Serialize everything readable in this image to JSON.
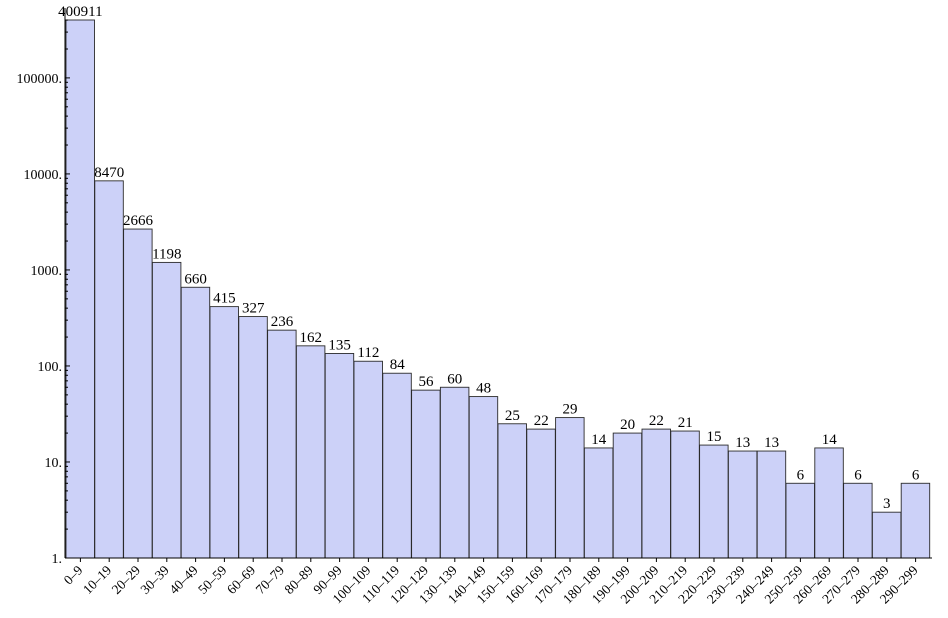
{
  "chart_data": {
    "type": "bar",
    "y_scale": "log",
    "ylim": [
      1,
      400911
    ],
    "grid": false,
    "legend": "none",
    "bar_color": "#ccd1f8",
    "edge_color": "#2b2b2b",
    "y_ticks": [
      1,
      10,
      100,
      1000,
      10000,
      100000
    ],
    "y_tick_labels": [
      "1.",
      "10.",
      "100.",
      "1000.",
      "10000.",
      "100000."
    ],
    "categories": [
      "0–9",
      "10–19",
      "20–29",
      "30–39",
      "40–49",
      "50–59",
      "60–69",
      "70–79",
      "80–89",
      "90–99",
      "100–109",
      "110–119",
      "120–129",
      "130–139",
      "140–149",
      "150–159",
      "160–169",
      "170–179",
      "180–189",
      "190–199",
      "200–209",
      "210–219",
      "220–229",
      "230–239",
      "240–249",
      "250–259",
      "260–269",
      "270–279",
      "280–289",
      "290–299"
    ],
    "values": [
      400911,
      8470,
      2666,
      1198,
      660,
      415,
      327,
      236,
      162,
      135,
      112,
      84,
      56,
      60,
      48,
      25,
      22,
      29,
      14,
      20,
      22,
      21,
      15,
      13,
      13,
      6,
      14,
      6,
      3,
      6
    ],
    "data_labels": [
      "400911",
      "8470",
      "2666",
      "1198",
      "660",
      "415",
      "327",
      "236",
      "162",
      "135",
      "112",
      "84",
      "56",
      "60",
      "48",
      "25",
      "22",
      "29",
      "14",
      "20",
      "22",
      "21",
      "15",
      "13",
      "13",
      "6",
      "14",
      "6",
      "3",
      "6"
    ]
  }
}
